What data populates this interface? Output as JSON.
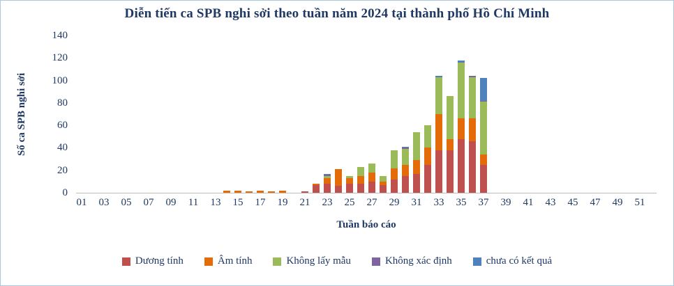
{
  "title": "Diễn tiến ca SPB nghi sởi theo tuần năm 2024 tại thành phố Hồ Chí Minh",
  "chart_data": {
    "type": "bar",
    "stacked": true,
    "title": "Diễn tiến ca SPB nghi sởi theo tuần năm 2024 tại thành phố Hồ Chí Minh",
    "xlabel": "Tuần báo cáo",
    "ylabel": "Số ca SPB nghi sởi",
    "ylim": [
      0,
      140
    ],
    "ytick_step": 20,
    "grid": false,
    "legend_position": "bottom",
    "categories": [
      "01",
      "02",
      "03",
      "04",
      "05",
      "06",
      "07",
      "08",
      "09",
      "10",
      "11",
      "12",
      "13",
      "14",
      "15",
      "16",
      "17",
      "18",
      "19",
      "20",
      "21",
      "22",
      "23",
      "24",
      "25",
      "26",
      "27",
      "28",
      "29",
      "30",
      "31",
      "32",
      "33",
      "34",
      "35",
      "36",
      "37",
      "38",
      "39",
      "40",
      "41",
      "42",
      "43",
      "44",
      "45",
      "46",
      "47",
      "48",
      "49",
      "50",
      "51",
      "52"
    ],
    "xticks_shown": [
      "01",
      "03",
      "05",
      "07",
      "09",
      "11",
      "13",
      "15",
      "17",
      "19",
      "21",
      "23",
      "25",
      "27",
      "29",
      "31",
      "33",
      "35",
      "37",
      "39",
      "41",
      "43",
      "45",
      "47",
      "49",
      "51"
    ],
    "series": [
      {
        "name": "Dương tính",
        "color": "#C0504D",
        "values": [
          0,
          0,
          0,
          0,
          0,
          0,
          0,
          0,
          0,
          0,
          0,
          0,
          0,
          0,
          0,
          0,
          0,
          0,
          0,
          0,
          1,
          7,
          8,
          6,
          8,
          8,
          10,
          7,
          12,
          15,
          17,
          25,
          38,
          38,
          48,
          46,
          25,
          0,
          0,
          0,
          0,
          0,
          0,
          0,
          0,
          0,
          0,
          0,
          0,
          0,
          0,
          0
        ]
      },
      {
        "name": "Âm tính",
        "color": "#E36C09",
        "values": [
          0,
          0,
          0,
          0,
          0,
          0,
          0,
          0,
          0,
          0,
          0,
          0,
          0,
          2,
          2,
          1,
          2,
          1,
          2,
          0,
          0,
          1,
          5,
          15,
          5,
          7,
          8,
          3,
          10,
          10,
          12,
          15,
          32,
          10,
          18,
          20,
          9,
          0,
          0,
          0,
          0,
          0,
          0,
          0,
          0,
          0,
          0,
          0,
          0,
          0,
          0,
          0
        ]
      },
      {
        "name": "Không lấy  mẫu",
        "color": "#9BBB59",
        "values": [
          0,
          0,
          0,
          0,
          0,
          0,
          0,
          0,
          0,
          0,
          0,
          0,
          0,
          0,
          0,
          0,
          0,
          0,
          0,
          0,
          0,
          0,
          2,
          0,
          2,
          8,
          8,
          5,
          16,
          14,
          25,
          20,
          33,
          38,
          50,
          37,
          47,
          0,
          0,
          0,
          0,
          0,
          0,
          0,
          0,
          0,
          0,
          0,
          0,
          0,
          0,
          0
        ]
      },
      {
        "name": "Không xác định",
        "color": "#8064A2",
        "values": [
          0,
          0,
          0,
          0,
          0,
          0,
          0,
          0,
          0,
          0,
          0,
          0,
          0,
          0,
          0,
          0,
          0,
          0,
          0,
          0,
          0,
          0,
          1,
          0,
          0,
          0,
          0,
          0,
          0,
          1,
          0,
          0,
          0,
          0,
          0,
          1,
          1,
          0,
          0,
          0,
          0,
          0,
          0,
          0,
          0,
          0,
          0,
          0,
          0,
          0,
          0,
          0
        ]
      },
      {
        "name": "chưa có kết quả",
        "color": "#4F81BD",
        "values": [
          0,
          0,
          0,
          0,
          0,
          0,
          0,
          0,
          0,
          0,
          0,
          0,
          0,
          0,
          0,
          0,
          0,
          0,
          0,
          0,
          0,
          0,
          1,
          0,
          0,
          0,
          0,
          0,
          0,
          1,
          0,
          0,
          1,
          0,
          2,
          0,
          20,
          0,
          0,
          0,
          0,
          0,
          0,
          0,
          0,
          0,
          0,
          0,
          0,
          0,
          0,
          0
        ]
      }
    ]
  }
}
